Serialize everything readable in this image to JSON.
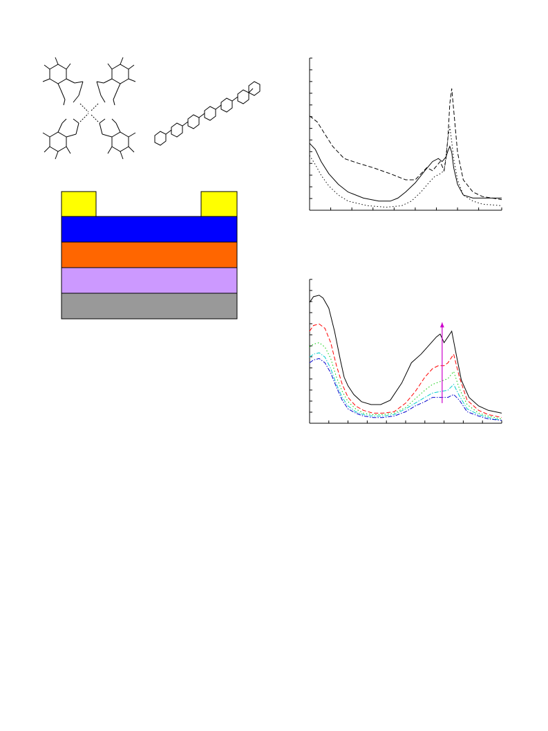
{
  "colors": {
    "electrode": "#ffff00",
    "layer_blue": "#0000ff",
    "layer_orange": "#ff6600",
    "layer_lilac": "#cc99ff",
    "substrate": "#999999",
    "arrow": "#cc00cc"
  },
  "device_stack": {
    "electrodes": [
      "electrode-left",
      "electrode-right"
    ],
    "layers": [
      "layer-blue",
      "layer-orange",
      "layer-lilac",
      "substrate-gray"
    ]
  },
  "chart_data": [
    {
      "type": "line",
      "title": "",
      "xlabel": "",
      "ylabel": "",
      "xlim": [
        0,
        100
      ],
      "ylim": [
        0,
        100
      ],
      "x_ticks": [
        0,
        11,
        22,
        33,
        44,
        55,
        66,
        77,
        88,
        100
      ],
      "y_ticks": [
        0,
        7.7,
        15.4,
        23.1,
        30.8,
        38.5,
        46.2,
        53.8,
        61.5,
        69.2,
        76.9,
        84.6,
        92.3,
        100
      ],
      "grid": false,
      "legend": "none",
      "series": [
        {
          "style": "solid",
          "color": "#000000",
          "x": [
            0,
            3,
            6,
            10,
            15,
            20,
            28,
            36,
            42,
            46,
            50,
            55,
            60,
            64,
            67,
            69,
            71,
            72,
            73,
            74,
            75,
            77,
            80,
            85,
            90,
            100
          ],
          "y": [
            44,
            40,
            32,
            24,
            17,
            12,
            8,
            6,
            6,
            8,
            12,
            18,
            26,
            32,
            34,
            32,
            35,
            39,
            42,
            38,
            28,
            17,
            10,
            8,
            8,
            8
          ]
        },
        {
          "style": "dashed",
          "color": "#000000",
          "x": [
            0,
            4,
            8,
            12,
            18,
            25,
            33,
            42,
            50,
            55,
            58,
            61,
            64,
            66,
            68,
            70,
            71,
            72,
            73,
            74,
            75,
            77,
            80,
            85,
            90,
            100
          ],
          "y": [
            62,
            58,
            50,
            42,
            34,
            31,
            28,
            24,
            20,
            20,
            24,
            28,
            26,
            29,
            32,
            26,
            34,
            48,
            70,
            80,
            66,
            38,
            20,
            12,
            9,
            7
          ]
        },
        {
          "style": "dotted",
          "color": "#000000",
          "x": [
            0,
            3,
            6,
            10,
            15,
            20,
            30,
            40,
            48,
            53,
            58,
            62,
            65,
            68,
            70,
            71,
            72,
            73,
            74,
            75,
            77,
            80,
            85,
            90,
            100
          ],
          "y": [
            36,
            30,
            23,
            16,
            10,
            6,
            3,
            2,
            3,
            6,
            12,
            18,
            22,
            24,
            26,
            36,
            47,
            55,
            45,
            34,
            20,
            10,
            6,
            4,
            3
          ]
        }
      ]
    },
    {
      "type": "line",
      "title": "",
      "xlabel": "",
      "ylabel": "",
      "xlim": [
        0,
        100
      ],
      "ylim": [
        0,
        100
      ],
      "x_ticks": [
        0,
        10,
        20,
        30,
        40,
        50,
        60,
        70,
        80,
        90,
        100
      ],
      "y_ticks": [
        0,
        7.7,
        15.4,
        23.1,
        30.8,
        38.5,
        46.2,
        53.8,
        61.5,
        69.2,
        76.9,
        84.6,
        92.3,
        100
      ],
      "grid": false,
      "legend": "none",
      "annotation": {
        "type": "arrow",
        "direction": "up",
        "x": 69,
        "y_from": 14,
        "y_to": 70
      },
      "series": [
        {
          "style": "solid",
          "color": "#000000",
          "x": [
            0,
            2,
            5,
            7,
            10,
            13,
            16,
            18,
            20,
            23,
            27,
            32,
            37,
            42,
            48,
            53,
            58,
            62,
            66,
            68,
            70,
            72,
            74,
            76,
            79,
            83,
            88,
            93,
            100
          ],
          "y": [
            84,
            88,
            89,
            87,
            80,
            64,
            44,
            32,
            26,
            20,
            15,
            13,
            13,
            16,
            28,
            42,
            48,
            54,
            60,
            62,
            56,
            60,
            64,
            50,
            30,
            18,
            12,
            9,
            7
          ]
        },
        {
          "style": "dashed",
          "color": "#ff0000",
          "x": [
            0,
            2,
            5,
            8,
            11,
            14,
            17,
            20,
            24,
            28,
            33,
            38,
            44,
            50,
            55,
            60,
            64,
            67,
            70,
            72,
            75,
            78,
            82,
            88,
            93,
            100
          ],
          "y": [
            64,
            68,
            69,
            66,
            56,
            40,
            27,
            18,
            12,
            9,
            7,
            7,
            8,
            14,
            22,
            32,
            38,
            40,
            40,
            42,
            48,
            32,
            16,
            9,
            6,
            4
          ]
        },
        {
          "style": "dotted",
          "color": "#00cc00",
          "x": [
            0,
            2,
            5,
            8,
            11,
            14,
            17,
            20,
            24,
            28,
            33,
            38,
            44,
            50,
            55,
            60,
            64,
            68,
            72,
            75,
            78,
            82,
            88,
            93,
            100
          ],
          "y": [
            53,
            55,
            56,
            53,
            45,
            32,
            22,
            15,
            10,
            7,
            6,
            6,
            7,
            11,
            17,
            23,
            27,
            29,
            31,
            36,
            24,
            13,
            7,
            5,
            3
          ]
        },
        {
          "style": "dashdot",
          "color": "#00cccc",
          "x": [
            0,
            2,
            5,
            8,
            11,
            14,
            17,
            20,
            24,
            28,
            33,
            38,
            44,
            50,
            55,
            60,
            64,
            68,
            72,
            75,
            78,
            82,
            88,
            93,
            100
          ],
          "y": [
            46,
            48,
            49,
            46,
            38,
            27,
            18,
            12,
            8,
            6,
            5,
            5,
            6,
            10,
            14,
            18,
            21,
            22,
            23,
            27,
            19,
            10,
            6,
            4,
            2
          ]
        },
        {
          "style": "dashdot",
          "color": "#0000cc",
          "x": [
            0,
            2,
            5,
            8,
            11,
            14,
            17,
            20,
            24,
            28,
            33,
            38,
            44,
            50,
            55,
            60,
            64,
            68,
            72,
            75,
            78,
            82,
            88,
            93,
            100
          ],
          "y": [
            42,
            44,
            45,
            42,
            35,
            25,
            16,
            10,
            7,
            5,
            4,
            4,
            5,
            8,
            12,
            15,
            18,
            18,
            18,
            20,
            16,
            8,
            5,
            3,
            2
          ]
        }
      ]
    }
  ]
}
